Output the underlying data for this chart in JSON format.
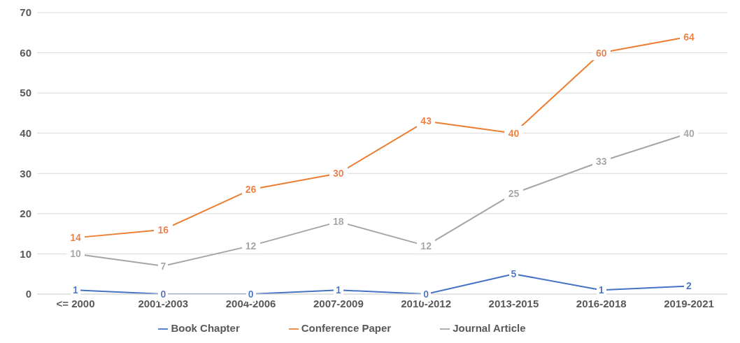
{
  "chart_data": {
    "type": "line",
    "categories": [
      "<= 2000",
      "2001-2003",
      "2004-2006",
      "2007-2009",
      "2010-2012",
      "2013-2015",
      "2016-2018",
      "2019-2021"
    ],
    "series": [
      {
        "name": "Book Chapter",
        "color": "#4472c4",
        "values": [
          1,
          0,
          0,
          1,
          0,
          5,
          1,
          2
        ]
      },
      {
        "name": "Conference Paper",
        "color": "#ed7d31",
        "values": [
          14,
          16,
          26,
          30,
          43,
          40,
          60,
          64
        ]
      },
      {
        "name": "Journal Article",
        "color": "#a5a5a5",
        "values": [
          10,
          7,
          12,
          18,
          12,
          25,
          33,
          40
        ]
      }
    ],
    "ylim": [
      0,
      70
    ],
    "yticks": [
      0,
      10,
      20,
      30,
      40,
      50,
      60,
      70
    ],
    "grid": "y",
    "legend": "bottom",
    "data_labels": true,
    "marker": "none",
    "line_style": "solid"
  }
}
